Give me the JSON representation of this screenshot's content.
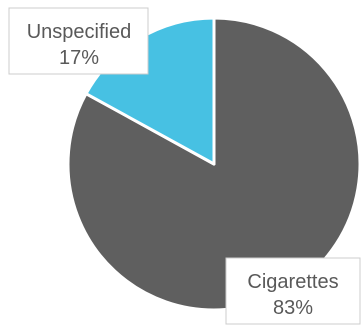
{
  "chart_data": {
    "type": "pie",
    "slices": [
      {
        "label": "Cigarettes",
        "value": 83,
        "value_label": "83%",
        "color": "#5f5f5f"
      },
      {
        "label": "Unspecified",
        "value": 17,
        "value_label": "17%",
        "color": "#47c1e3"
      }
    ],
    "start": "12 o'clock",
    "direction": "clockwise",
    "legend": "none",
    "data_labels": "callout boxes"
  }
}
